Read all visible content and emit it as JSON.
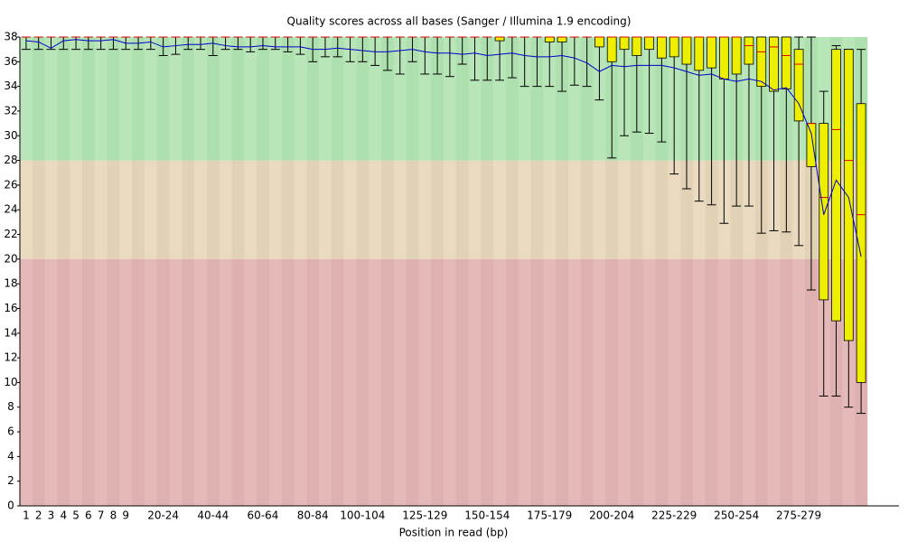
{
  "chart_data": {
    "type": "box",
    "title": "Quality scores across all bases (Sanger / Illumina 1.9 encoding)",
    "xlabel": "Position in read (bp)",
    "categories": [
      "1",
      "2",
      "3",
      "4",
      "5",
      "6",
      "7",
      "8",
      "9",
      null,
      null,
      "20-24",
      null,
      null,
      null,
      "40-44",
      null,
      null,
      null,
      "60-64",
      null,
      null,
      null,
      "80-84",
      null,
      null,
      null,
      "100-104",
      null,
      null,
      null,
      null,
      "125-129",
      null,
      null,
      null,
      null,
      "150-154",
      null,
      null,
      null,
      null,
      "175-179",
      null,
      null,
      null,
      null,
      "200-204",
      null,
      null,
      null,
      null,
      "225-229",
      null,
      null,
      null,
      null,
      "250-254",
      null,
      null,
      null,
      null,
      "275-279",
      null,
      null,
      null,
      null,
      null
    ],
    "whislo": [
      37,
      37,
      37,
      37,
      37,
      37,
      37,
      37,
      37,
      37,
      37,
      36.5,
      36.6,
      37,
      37,
      36.5,
      37,
      37,
      36.8,
      37,
      37,
      36.8,
      36.6,
      36,
      36.4,
      36.4,
      36,
      36,
      35.7,
      35.3,
      35,
      36,
      35,
      35,
      34.8,
      35.8,
      34.5,
      34.5,
      34.5,
      34.7,
      34,
      34,
      34,
      33.6,
      34.1,
      34,
      32.9,
      28.2,
      30,
      30.3,
      30.2,
      29.5,
      26.9,
      25.7,
      24.7,
      24.4,
      22.9,
      24.3,
      24.3,
      22.1,
      22.3,
      22.2,
      21.1,
      17.5,
      8.9,
      8.9,
      8,
      7.5
    ],
    "q1": [
      38,
      38,
      38,
      38,
      38,
      38,
      38,
      38,
      38,
      38,
      38,
      38,
      38,
      38,
      38,
      38,
      38,
      38,
      38,
      38,
      38,
      38,
      38,
      38,
      38,
      38,
      38,
      38,
      38,
      38,
      38,
      38,
      38,
      38,
      38,
      38,
      38,
      38,
      37.7,
      38,
      38,
      38,
      37.6,
      37.6,
      38,
      38,
      37.2,
      36,
      37,
      36.5,
      37,
      36.3,
      36.4,
      35.8,
      35.3,
      35.5,
      34.6,
      35,
      35.8,
      34,
      33.6,
      33.8,
      31.2,
      27.5,
      16.7,
      15,
      13.4,
      10
    ],
    "med": [
      38,
      38,
      38,
      38,
      38,
      38,
      38,
      38,
      38,
      38,
      38,
      38,
      38,
      38,
      38,
      38,
      38,
      38,
      38,
      38,
      38,
      38,
      38,
      38,
      38,
      38,
      38,
      38,
      38,
      38,
      38,
      38,
      38,
      38,
      38,
      38,
      38,
      38,
      38,
      38,
      38,
      38,
      38,
      38,
      38,
      38,
      38,
      38,
      38,
      38,
      38,
      38,
      38,
      38,
      38,
      38,
      38,
      38,
      37.3,
      36.8,
      37.2,
      36.5,
      35.8,
      31,
      25,
      30.5,
      28,
      23.6
    ],
    "q3": [
      38,
      38,
      38,
      38,
      38,
      38,
      38,
      38,
      38,
      38,
      38,
      38,
      38,
      38,
      38,
      38,
      38,
      38,
      38,
      38,
      38,
      38,
      38,
      38,
      38,
      38,
      38,
      38,
      38,
      38,
      38,
      38,
      38,
      38,
      38,
      38,
      38,
      38,
      38,
      38,
      38,
      38,
      38,
      38,
      38,
      38,
      38,
      38,
      38,
      38,
      38,
      38,
      38,
      38,
      38,
      38,
      38,
      38,
      38,
      38,
      38,
      38,
      37,
      31,
      31,
      37,
      37,
      32.6
    ],
    "whishi": [
      38,
      38,
      38,
      38,
      38,
      38,
      38,
      38,
      38,
      38,
      38,
      38,
      38,
      38,
      38,
      38,
      38,
      38,
      38,
      38,
      38,
      38,
      38,
      38,
      38,
      38,
      38,
      38,
      38,
      38,
      38,
      38,
      38,
      38,
      38,
      38,
      38,
      38,
      38,
      38,
      38,
      38,
      38,
      38,
      38,
      38,
      38,
      38,
      38,
      38,
      38,
      38,
      38,
      38,
      38,
      38,
      38,
      38,
      38,
      38,
      38,
      38,
      38,
      38,
      33.6,
      37.3,
      37,
      37
    ],
    "mean": [
      37.7,
      37.6,
      37.1,
      37.7,
      37.8,
      37.7,
      37.7,
      37.8,
      37.5,
      37.5,
      37.6,
      37.2,
      37.3,
      37.4,
      37.4,
      37.5,
      37.3,
      37.2,
      37.2,
      37.3,
      37.2,
      37.2,
      37.2,
      37,
      37,
      37.1,
      37,
      36.9,
      36.8,
      36.8,
      36.9,
      37,
      36.8,
      36.7,
      36.7,
      36.6,
      36.7,
      36.5,
      36.6,
      36.7,
      36.5,
      36.4,
      36.4,
      36.5,
      36.3,
      35.9,
      35.2,
      35.7,
      35.6,
      35.7,
      35.7,
      35.7,
      35.5,
      35.2,
      34.9,
      35,
      34.6,
      34.4,
      34.6,
      34.4,
      33.7,
      33.9,
      32.6,
      30.2,
      23.6,
      26.4,
      25,
      20.2
    ],
    "box_color": "#eeee00",
    "median_color": "#dd0000",
    "mean_color": "#0000cc",
    "bands": [
      {
        "from": 28,
        "to": 38,
        "color": "#b9e6b9",
        "alt_color": "#aedfae"
      },
      {
        "from": 20,
        "to": 28,
        "color": "#e9dac0",
        "alt_color": "#e2d2b5"
      },
      {
        "from": 0,
        "to": 20,
        "color": "#e6b9b9",
        "alt_color": "#deb0b0"
      }
    ],
    "ylim": [
      0,
      38
    ],
    "yticks": [
      0,
      2,
      4,
      6,
      8,
      10,
      12,
      14,
      16,
      18,
      20,
      22,
      24,
      26,
      28,
      30,
      32,
      34,
      36,
      38
    ]
  }
}
